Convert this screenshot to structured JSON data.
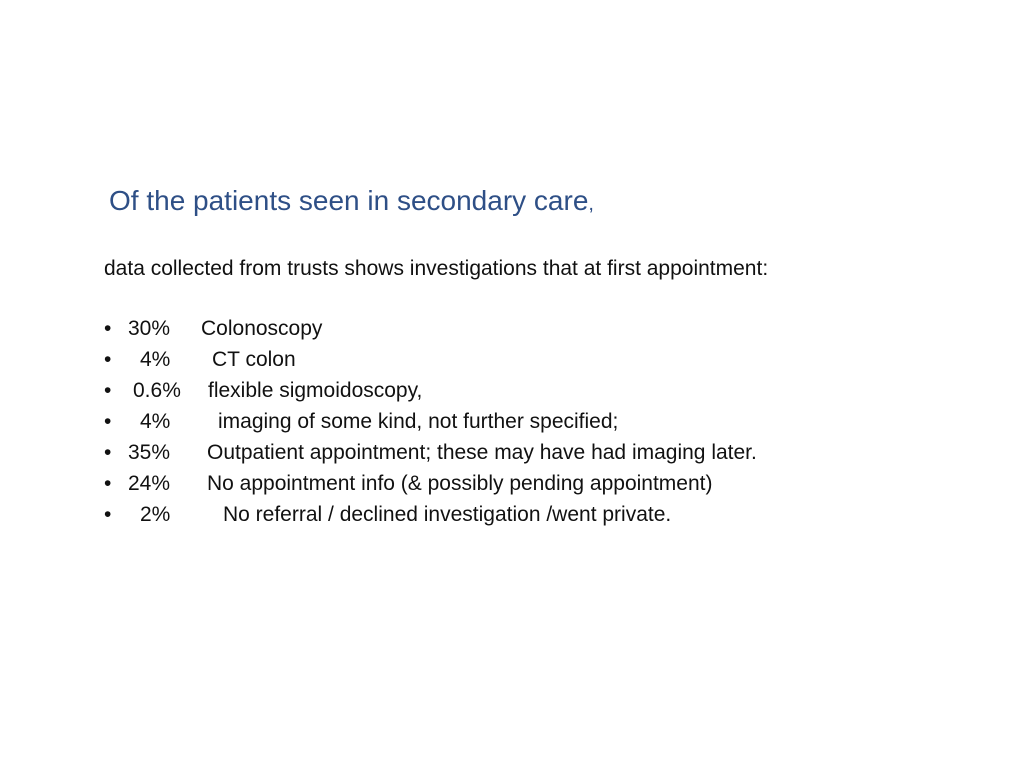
{
  "slide": {
    "title": "Of the patients seen in secondary care",
    "title_suffix": ",",
    "intro": "data collected from trusts shows investigations that at first appointment:",
    "bullet_glyph": "•",
    "items": [
      {
        "percent": "30%",
        "label": "Colonoscopy"
      },
      {
        "percent": "4%",
        "label": "CT colon"
      },
      {
        "percent": "0.6%",
        "label": "flexible sigmoidoscopy,"
      },
      {
        "percent": "4%",
        "label": "imaging of some kind, not further specified;"
      },
      {
        "percent": "35%",
        "label": "Outpatient appointment; these may have had imaging later."
      },
      {
        "percent": "24%",
        "label": "No appointment info (& possibly pending appointment)"
      },
      {
        "percent": "2%",
        "label": "No referral / declined investigation /went private."
      }
    ]
  },
  "colors": {
    "title": "#2e4f86",
    "text": "#111111",
    "background": "#ffffff"
  }
}
